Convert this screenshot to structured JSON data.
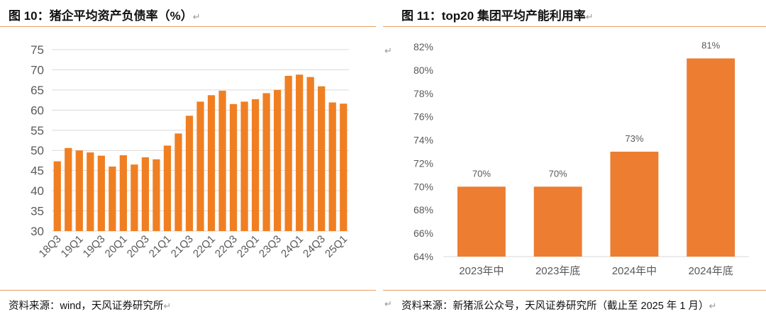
{
  "left": {
    "title": "图 10：猪企平均资产负债率（%）",
    "source": "资料来源：wind，天风证券研究所",
    "para_mark": "↵"
  },
  "right": {
    "title": "图 11：top20 集团平均产能利用率",
    "source": "资料来源：新猪派公众号，天风证券研究所（截止至 2025 年 1 月）",
    "para_mark": "↵"
  },
  "colors": {
    "bar": "#f07f22",
    "bar_right": "#ed7d31",
    "grid": "#d9d9d9",
    "rule": "#e8a060"
  },
  "chart_data": [
    {
      "type": "bar",
      "title": "",
      "xlabel": "",
      "ylabel": "",
      "ylim": [
        30,
        75
      ],
      "yticks": [
        30,
        35,
        40,
        45,
        50,
        55,
        60,
        65,
        70,
        75
      ],
      "grid": true,
      "categories": [
        "18Q3",
        "18Q4",
        "19Q1",
        "19Q2",
        "19Q3",
        "19Q4",
        "20Q1",
        "20Q2",
        "20Q3",
        "20Q4",
        "21Q1",
        "21Q2",
        "21Q3",
        "21Q4",
        "22Q1",
        "22Q2",
        "22Q3",
        "22Q4",
        "23Q1",
        "23Q2",
        "23Q3",
        "23Q4",
        "24Q1",
        "24Q2",
        "24Q3",
        "24Q4",
        "25Q1"
      ],
      "tick_labels": [
        "18Q3",
        "",
        "19Q1",
        "",
        "19Q3",
        "",
        "20Q1",
        "",
        "20Q3",
        "",
        "21Q1",
        "",
        "21Q3",
        "",
        "22Q1",
        "",
        "22Q3",
        "",
        "23Q1",
        "",
        "23Q3",
        "",
        "24Q1",
        "",
        "24Q3",
        "",
        "25Q1"
      ],
      "values": [
        47.3,
        50.6,
        50.0,
        49.5,
        48.7,
        46.0,
        48.8,
        46.5,
        48.3,
        47.8,
        51.2,
        54.2,
        58.6,
        62.1,
        63.7,
        64.8,
        61.5,
        62.1,
        62.7,
        64.2,
        65.0,
        68.5,
        68.8,
        68.2,
        65.9,
        61.9,
        61.6
      ]
    },
    {
      "type": "bar",
      "title": "",
      "xlabel": "",
      "ylabel": "",
      "ylim": [
        64,
        82
      ],
      "yticks": [
        "64%",
        "66%",
        "68%",
        "70%",
        "72%",
        "74%",
        "76%",
        "78%",
        "80%",
        "82%"
      ],
      "grid": false,
      "categories": [
        "2023年中",
        "2023年底",
        "2024年中",
        "2024年底"
      ],
      "values": [
        70,
        70,
        73,
        81
      ],
      "data_labels": [
        "70%",
        "70%",
        "73%",
        "81%"
      ]
    }
  ]
}
